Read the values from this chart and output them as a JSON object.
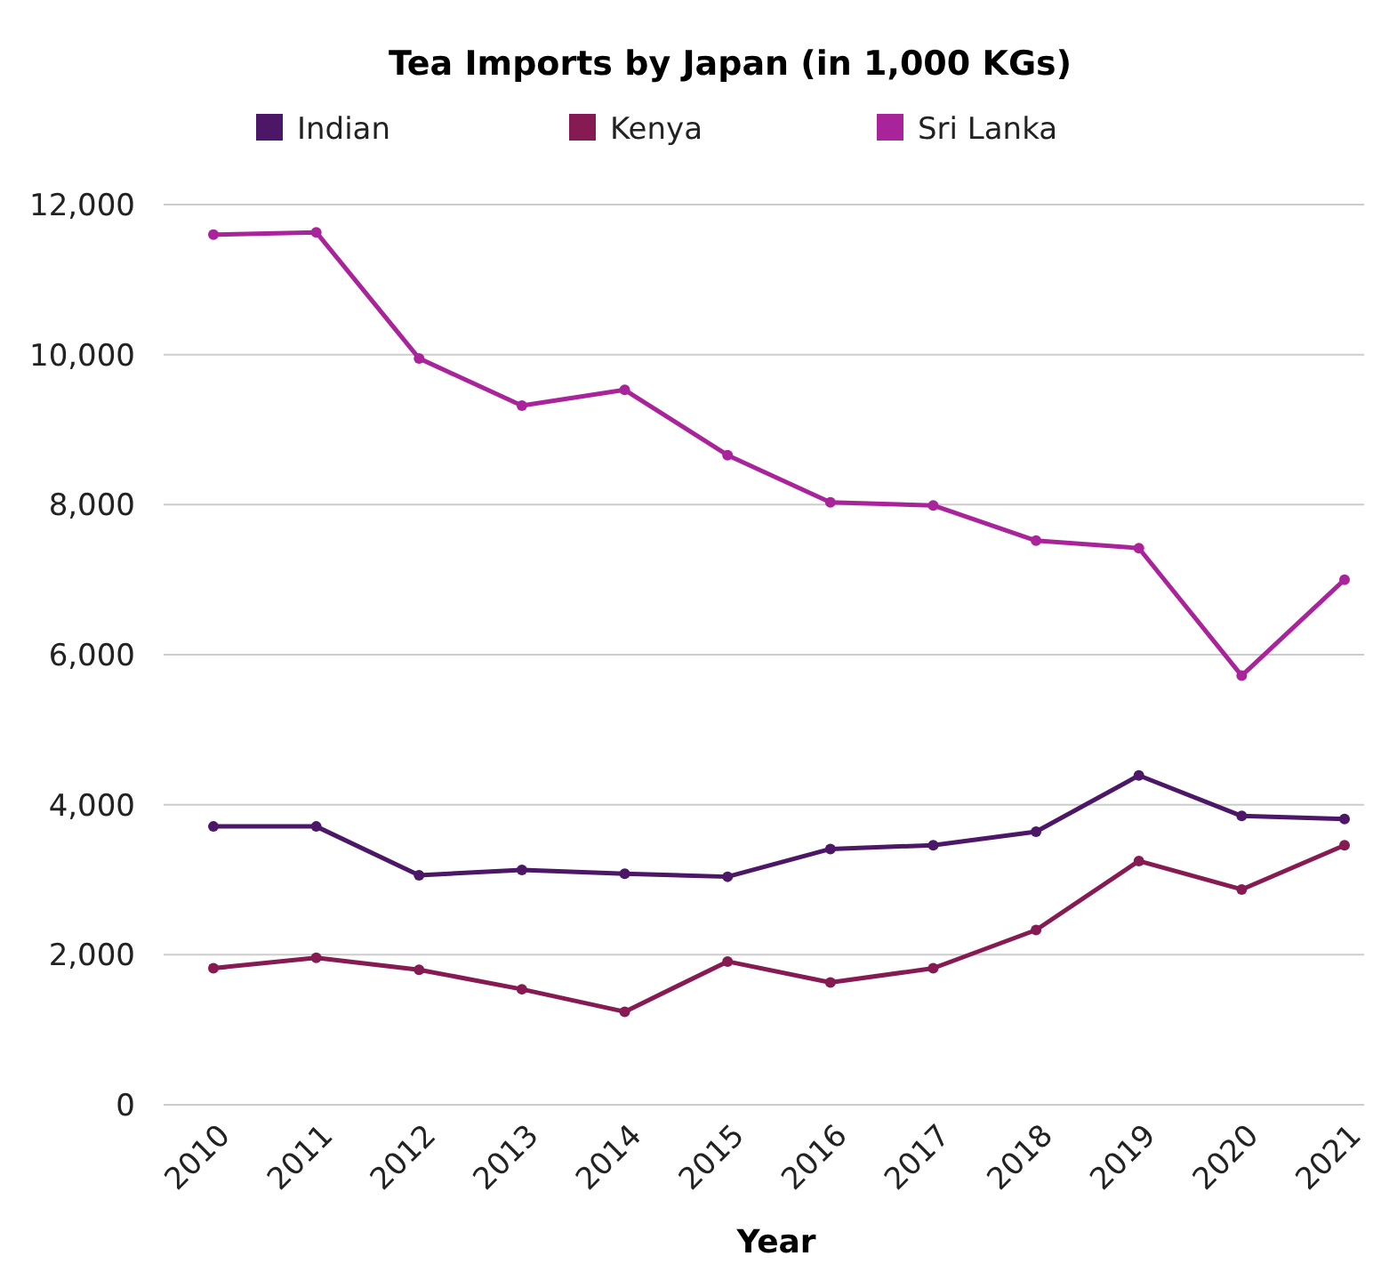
{
  "chart_data": {
    "type": "line",
    "title": "Tea Imports by Japan (in 1,000 KGs)",
    "xlabel": "Year",
    "categories": [
      "2010",
      "2011",
      "2012",
      "2013",
      "2014",
      "2015",
      "2016",
      "2017",
      "2018",
      "2019",
      "2020",
      "2021"
    ],
    "series": [
      {
        "name": "Indian",
        "color": "#4b1766",
        "values": [
          3710,
          3710,
          3060,
          3130,
          3080,
          3040,
          3410,
          3460,
          3640,
          4390,
          3850,
          3810
        ]
      },
      {
        "name": "Kenya",
        "color": "#861a52",
        "values": [
          1820,
          1960,
          1800,
          1540,
          1240,
          1910,
          1630,
          1820,
          2330,
          3250,
          2870,
          3460
        ]
      },
      {
        "name": "Sri Lanka",
        "color": "#a9249b",
        "values": [
          11600,
          11630,
          9950,
          9320,
          9530,
          8660,
          8030,
          7990,
          7520,
          7420,
          5720,
          7000
        ]
      }
    ],
    "ylim": [
      0,
      12000
    ],
    "yticks": [
      {
        "value": 0,
        "label": "0"
      },
      {
        "value": 2000,
        "label": "2,000"
      },
      {
        "value": 4000,
        "label": "4,000"
      },
      {
        "value": 6000,
        "label": "6,000"
      },
      {
        "value": 8000,
        "label": "8,000"
      },
      {
        "value": 10000,
        "label": "10,000"
      },
      {
        "value": 12000,
        "label": "12,000"
      }
    ],
    "grid": "y",
    "legend": "top",
    "marker": "circle",
    "line_style": "solid"
  }
}
